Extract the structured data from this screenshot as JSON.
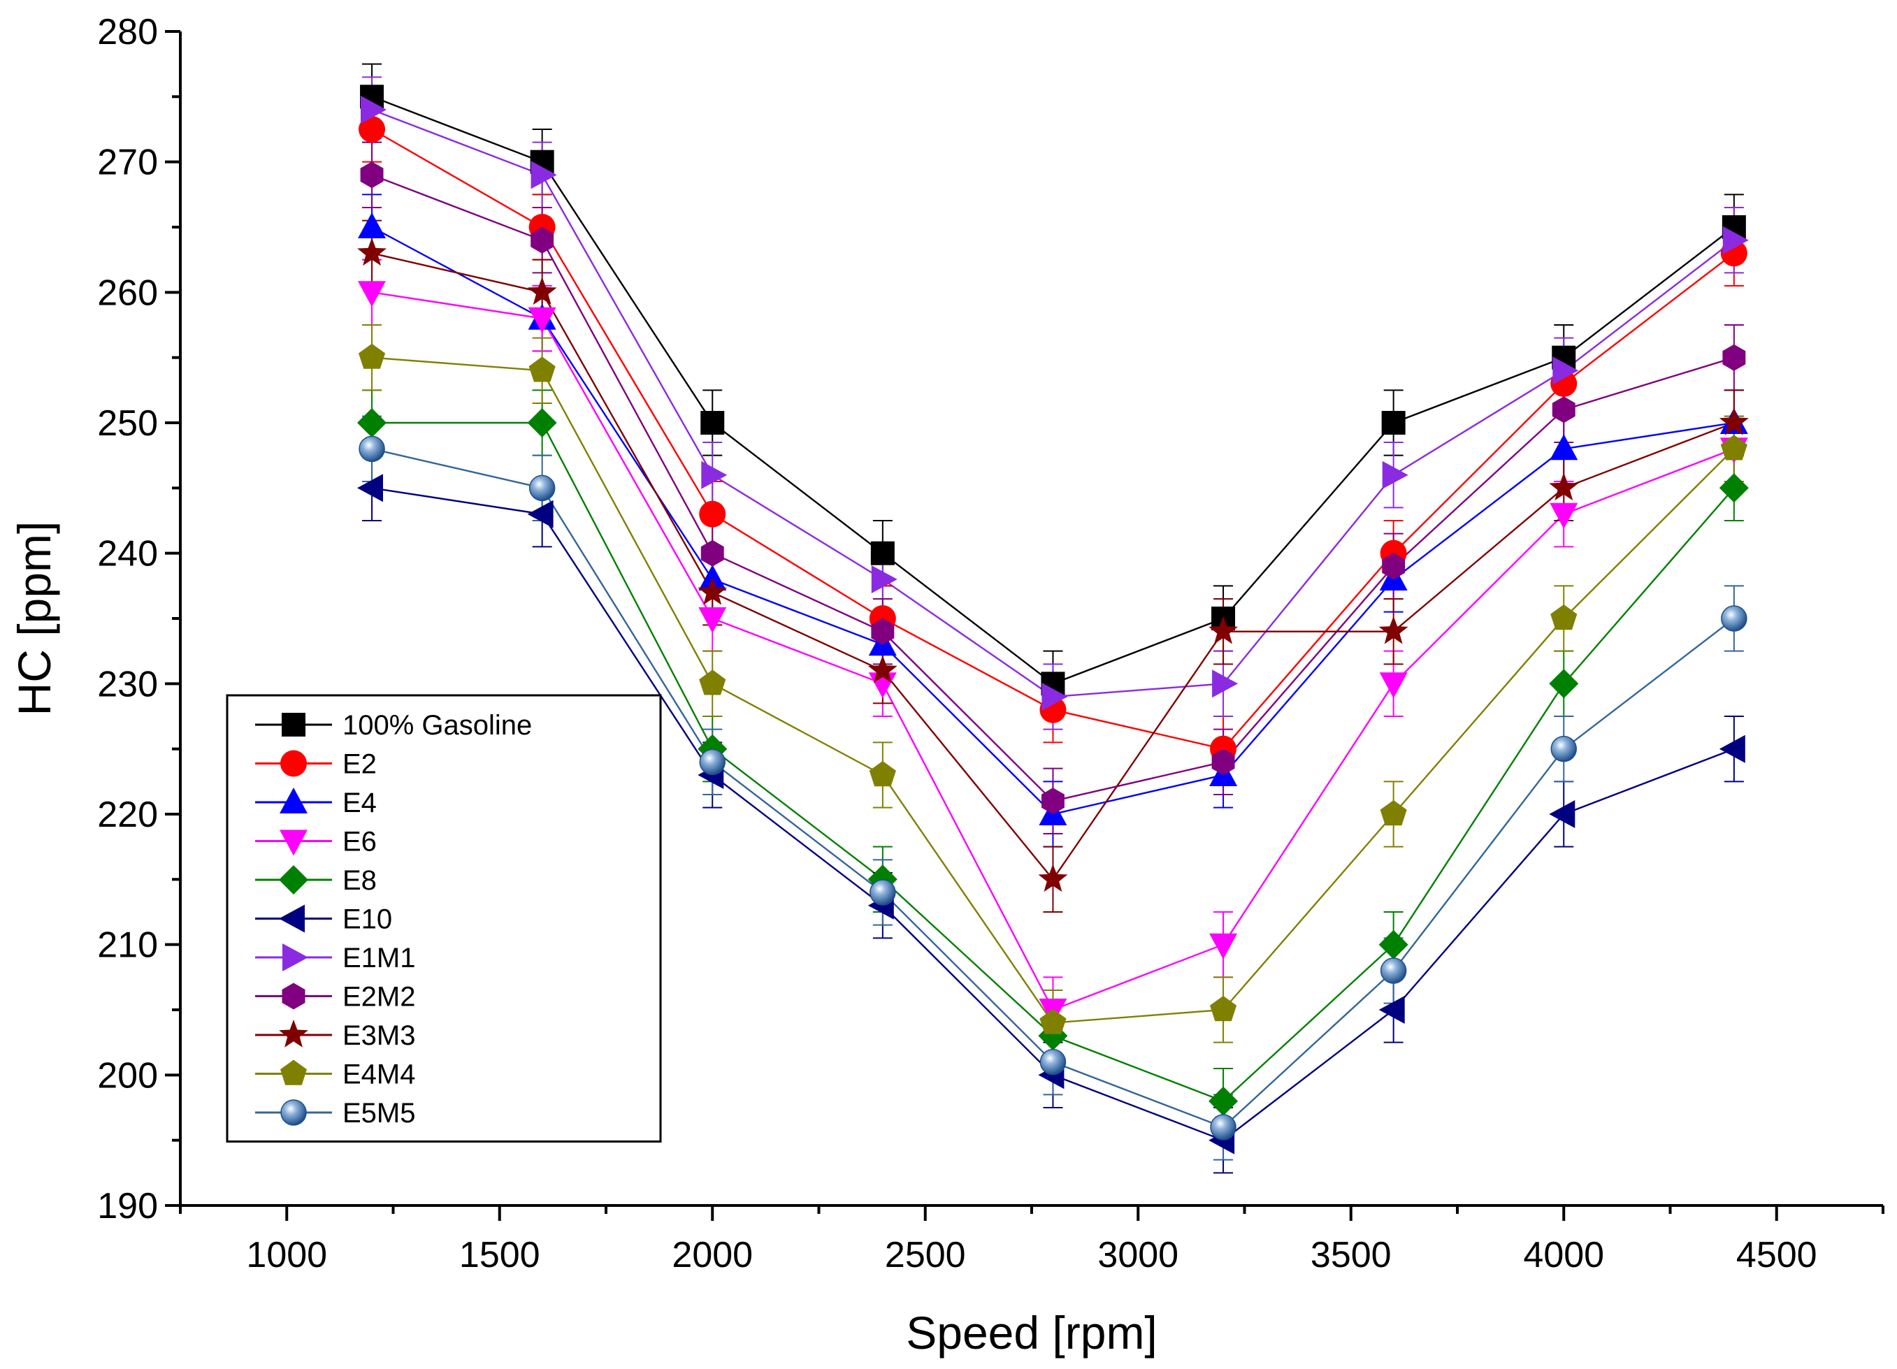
{
  "chart_data": {
    "type": "line",
    "title": "",
    "xlabel": "Speed [rpm]",
    "ylabel": "HC [ppm]",
    "xlim": [
      750,
      4750
    ],
    "ylim": [
      190,
      280
    ],
    "x_ticks": [
      1000,
      1500,
      2000,
      2500,
      3000,
      3500,
      4000,
      4500
    ],
    "y_ticks": [
      190,
      200,
      210,
      220,
      230,
      240,
      250,
      260,
      270,
      280
    ],
    "x": [
      1200,
      1600,
      2000,
      2400,
      2800,
      3200,
      3600,
      4000,
      4400
    ],
    "error_bar": 2.5,
    "legend_position": "lower-left",
    "series": [
      {
        "name": "100% Gasoline",
        "color": "#000000",
        "marker": "square",
        "values": [
          275,
          270,
          250,
          240,
          230,
          235,
          250,
          255,
          265
        ]
      },
      {
        "name": "E2",
        "color": "#ff0000",
        "marker": "circle",
        "values": [
          272.5,
          265,
          243,
          235,
          228,
          225,
          240,
          253,
          263
        ]
      },
      {
        "name": "E4",
        "color": "#0000ff",
        "marker": "triangle-up",
        "values": [
          265,
          258,
          238,
          233,
          220,
          223,
          238,
          248,
          250
        ]
      },
      {
        "name": "E6",
        "color": "#ff00ff",
        "marker": "triangle-down",
        "values": [
          260,
          258,
          235,
          230,
          205,
          210,
          230,
          243,
          248
        ]
      },
      {
        "name": "E8",
        "color": "#008000",
        "marker": "diamond",
        "values": [
          250,
          250,
          225,
          215,
          203,
          198,
          210,
          230,
          245
        ]
      },
      {
        "name": "E10",
        "color": "#000080",
        "marker": "triangle-left",
        "values": [
          245,
          243,
          223,
          213,
          200,
          195,
          205,
          220,
          225
        ]
      },
      {
        "name": "E1M1",
        "color": "#8a2be2",
        "marker": "triangle-right",
        "values": [
          274,
          269,
          246,
          238,
          229,
          230,
          246,
          254,
          264
        ]
      },
      {
        "name": "E2M2",
        "color": "#800080",
        "marker": "hexagon",
        "values": [
          269,
          264,
          240,
          234,
          221,
          224,
          239,
          251,
          255
        ]
      },
      {
        "name": "E3M3",
        "color": "#800000",
        "marker": "star",
        "values": [
          263,
          260,
          237,
          231,
          215,
          234,
          234,
          245,
          250
        ]
      },
      {
        "name": "E4M4",
        "color": "#808000",
        "marker": "pentagon",
        "values": [
          255,
          254,
          230,
          223,
          204,
          205,
          220,
          235,
          248
        ]
      },
      {
        "name": "E5M5",
        "color": "#336699",
        "marker": "sphere",
        "values": [
          248,
          245,
          224,
          214,
          201,
          196,
          208,
          225,
          235
        ]
      }
    ]
  }
}
